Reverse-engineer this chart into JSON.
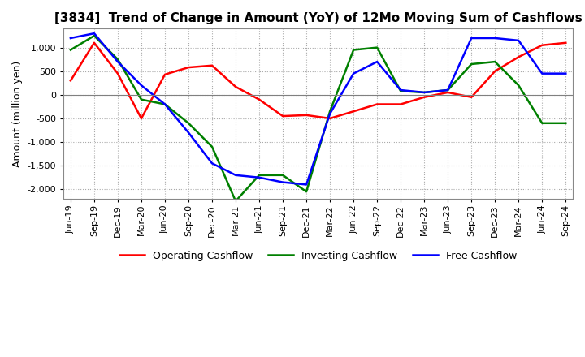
{
  "title": "[3834]  Trend of Change in Amount (YoY) of 12Mo Moving Sum of Cashflows",
  "ylabel": "Amount (million yen)",
  "ylim": [
    -2200,
    1400
  ],
  "yticks": [
    -2000,
    -1500,
    -1000,
    -500,
    0,
    500,
    1000
  ],
  "x_labels": [
    "Jun-19",
    "Sep-19",
    "Dec-19",
    "Mar-20",
    "Jun-20",
    "Sep-20",
    "Dec-20",
    "Mar-21",
    "Jun-21",
    "Sep-21",
    "Dec-21",
    "Mar-22",
    "Jun-22",
    "Sep-22",
    "Dec-22",
    "Mar-23",
    "Jun-23",
    "Sep-23",
    "Dec-23",
    "Mar-24",
    "Jun-24",
    "Sep-24"
  ],
  "operating": [
    300,
    1100,
    450,
    -500,
    430,
    580,
    620,
    170,
    -100,
    -450,
    -430,
    -500,
    -350,
    -200,
    -200,
    -50,
    50,
    -50,
    500,
    800,
    1050,
    1100
  ],
  "investing": [
    950,
    1250,
    750,
    -100,
    -200,
    -600,
    -1100,
    -2250,
    -1700,
    -1700,
    -2050,
    -350,
    950,
    1000,
    80,
    50,
    100,
    650,
    700,
    200,
    -600,
    -600
  ],
  "free": [
    1200,
    1300,
    700,
    200,
    -200,
    -800,
    -1450,
    -1700,
    -1750,
    -1850,
    -1900,
    -400,
    450,
    700,
    100,
    50,
    100,
    1200,
    1200,
    1150,
    450,
    450
  ],
  "operating_color": "#ff0000",
  "investing_color": "#008000",
  "free_color": "#0000ff",
  "background_color": "#ffffff",
  "legend_labels": [
    "Operating Cashflow",
    "Investing Cashflow",
    "Free Cashflow"
  ],
  "grid_color": "#aaaaaa",
  "grid_style": ":",
  "grid_linewidth": 0.8,
  "title_fontsize": 11,
  "ylabel_fontsize": 9,
  "tick_fontsize": 8
}
